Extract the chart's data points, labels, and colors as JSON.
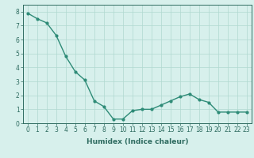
{
  "x": [
    0,
    1,
    2,
    3,
    4,
    5,
    6,
    7,
    8,
    9,
    10,
    11,
    12,
    13,
    14,
    15,
    16,
    17,
    18,
    19,
    20,
    21,
    22,
    23
  ],
  "y": [
    7.9,
    7.5,
    7.2,
    6.3,
    4.8,
    3.7,
    3.1,
    1.6,
    1.2,
    0.3,
    0.3,
    0.9,
    1.0,
    1.0,
    1.3,
    1.6,
    1.9,
    2.1,
    1.7,
    1.5,
    0.8,
    0.8,
    0.8,
    0.8
  ],
  "line_color": "#2e8b77",
  "marker_color": "#2e8b77",
  "bg_color": "#d7f0ec",
  "grid_color": "#b0d8d0",
  "axis_color": "#2e6b60",
  "xlabel": "Humidex (Indice chaleur)",
  "xlim": [
    -0.5,
    23.5
  ],
  "ylim": [
    0,
    8.5
  ],
  "yticks": [
    0,
    1,
    2,
    3,
    4,
    5,
    6,
    7,
    8
  ],
  "xticks": [
    0,
    1,
    2,
    3,
    4,
    5,
    6,
    7,
    8,
    9,
    10,
    11,
    12,
    13,
    14,
    15,
    16,
    17,
    18,
    19,
    20,
    21,
    22,
    23
  ],
  "xtick_labels": [
    "0",
    "1",
    "2",
    "3",
    "4",
    "5",
    "6",
    "7",
    "8",
    "9",
    "10",
    "11",
    "12",
    "13",
    "14",
    "15",
    "16",
    "17",
    "18",
    "19",
    "20",
    "21",
    "22",
    "23"
  ],
  "label_fontsize": 6.5,
  "tick_fontsize": 5.5,
  "linewidth": 1.0,
  "markersize": 2.0
}
